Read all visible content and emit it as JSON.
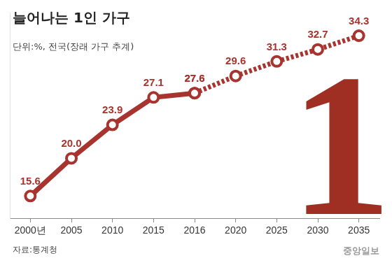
{
  "chart_data": {
    "type": "line",
    "title": "늘어나는 1인 가구",
    "subtitle": "단위:%, 전국(장래 가구 추계)",
    "source": "자료:통계청",
    "credit": "중앙일보",
    "annotations": [
      {
        "text": "1"
      }
    ],
    "categories": [
      "2000년",
      "2005",
      "2010",
      "2015",
      "2016",
      "2020",
      "2025",
      "2030",
      "2035"
    ],
    "series": [
      {
        "color": "#a8342f",
        "line_style": "solid",
        "marker": "circle",
        "values": [
          15.6,
          20.0,
          23.9,
          27.1,
          27.6,
          null,
          null,
          null,
          null
        ],
        "value_labels": [
          "15.6",
          "20.0",
          "23.9",
          "27.1",
          "27.6",
          null,
          null,
          null,
          null
        ]
      },
      {
        "color": "#a8342f",
        "line_style": "dotted",
        "marker": "circle",
        "values": [
          null,
          null,
          null,
          null,
          27.6,
          29.6,
          31.3,
          32.7,
          34.3
        ],
        "value_labels": [
          null,
          null,
          null,
          null,
          "27.6",
          "29.6",
          "31.3",
          "32.7",
          "34.3"
        ]
      }
    ],
    "ylim": [
      13,
      37
    ],
    "yticks": [],
    "grid": false,
    "data_labels": true,
    "tick_labels": "x"
  }
}
